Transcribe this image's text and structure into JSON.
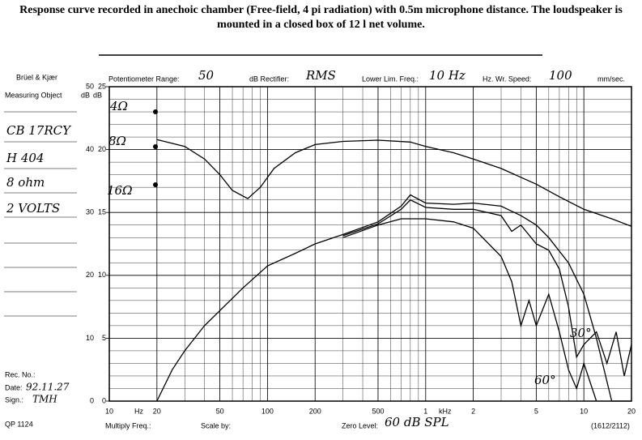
{
  "chart_data": {
    "type": "line",
    "title": "Response curve recorded in anechoic chamber (Free-field, 4 pi radiation) with 0.5m microphone distance. The loudspeaker is mounted in a closed box of 12 l net volume.",
    "x_log": true,
    "xlim": [
      10,
      20000
    ],
    "xticks": [
      10,
      20,
      50,
      100,
      200,
      500,
      {
        "value": 1000,
        "label": "1"
      },
      {
        "value": 2000,
        "label": "2"
      },
      {
        "value": 5000,
        "label": "5"
      },
      {
        "value": 10000,
        "label": "10"
      },
      {
        "value": 20000,
        "label": "20"
      }
    ],
    "x_units": [
      "Hz",
      "kHz"
    ],
    "ylim": [
      0,
      50
    ],
    "yticks": [
      0,
      10,
      20,
      30,
      40,
      50
    ],
    "y_label": "dB",
    "y2lim": [
      0,
      25
    ],
    "y2ticks": [
      0,
      5,
      10,
      15,
      20,
      25
    ],
    "y2_label": "dB",
    "grid": true,
    "color": "#000000",
    "annotations": [
      "4Ω",
      "8Ω",
      "16Ω",
      "60°",
      "30°"
    ],
    "series": [
      {
        "x": [
          20,
          30,
          40,
          50,
          60,
          75,
          90,
          110,
          150,
          200,
          300,
          500,
          800,
          1000,
          1500,
          2000,
          3000,
          5000,
          7000,
          10000,
          15000,
          20000
        ],
        "values": [
          41.6,
          40.5,
          38.5,
          36,
          33.5,
          32.2,
          34,
          37,
          39.5,
          40.8,
          41.3,
          41.5,
          41.2,
          40.5,
          39.5,
          38.5,
          37,
          34.5,
          32.5,
          30.5,
          29,
          27.8
        ]
      },
      {
        "x": [
          20,
          25,
          30,
          40,
          50,
          70,
          100,
          150,
          200,
          300,
          500,
          700,
          800,
          1000,
          1500,
          2000,
          3000,
          4000,
          5000,
          6000,
          8000,
          10000,
          12000,
          15000,
          20000
        ],
        "values": [
          0,
          5,
          8,
          12,
          14.4,
          18,
          21.5,
          23.5,
          25,
          26.5,
          28.5,
          31,
          32.8,
          31.5,
          31.3,
          31.5,
          31,
          29.5,
          28,
          26,
          22,
          17,
          10,
          0,
          0
        ]
      },
      {
        "x": [
          300,
          500,
          700,
          800,
          1000,
          1500,
          2000,
          3000,
          3500,
          4000,
          5000,
          6000,
          7000,
          8000,
          9000,
          10000,
          12000,
          14000,
          16000,
          18000,
          20000
        ],
        "values": [
          26.3,
          28.2,
          30.5,
          32,
          30.8,
          30.5,
          30.5,
          29.5,
          27,
          28,
          25,
          24,
          21,
          15,
          7,
          9,
          11,
          6,
          11,
          4,
          9
        ]
      },
      {
        "x": [
          300,
          500,
          700,
          1000,
          1500,
          2000,
          3000,
          3500,
          4000,
          4500,
          5000,
          6000,
          7000,
          8000,
          9000,
          10000,
          12000
        ],
        "values": [
          26,
          28,
          29,
          29,
          28.5,
          27.5,
          23,
          19,
          12,
          16,
          12,
          17,
          11,
          5,
          2,
          6,
          0
        ]
      }
    ]
  },
  "sheet": {
    "brand": "Brüel & Kjær",
    "measuring_object_label": "Measuring Object",
    "object_lines": [
      "CB 17RCY",
      "H 404",
      "8 ohm",
      "2 VOLTS"
    ],
    "rec_no_label": "Rec. No.:",
    "date_label": "Date:",
    "date": "92.11.27",
    "sign_label": "Sign.:",
    "sign": "TMH",
    "form": "QP 1124",
    "potentiometer_label": "Potentiometer Range:",
    "potentiometer": "50",
    "rectifier_label": "dB Rectifier:",
    "rectifier": "RMS",
    "lower_lim_label": "Lower Lim. Freq.:",
    "lower_lim": "10 Hz",
    "speed_label": "Hz. Wr. Speed:",
    "speed": "100",
    "speed_unit": "mm/sec.",
    "multiply_label": "Multiply Freq.:",
    "scale_label": "Scale by:",
    "zero_label": "Zero Level:",
    "zero": "60 dB SPL",
    "code": "(1612/2112)"
  }
}
